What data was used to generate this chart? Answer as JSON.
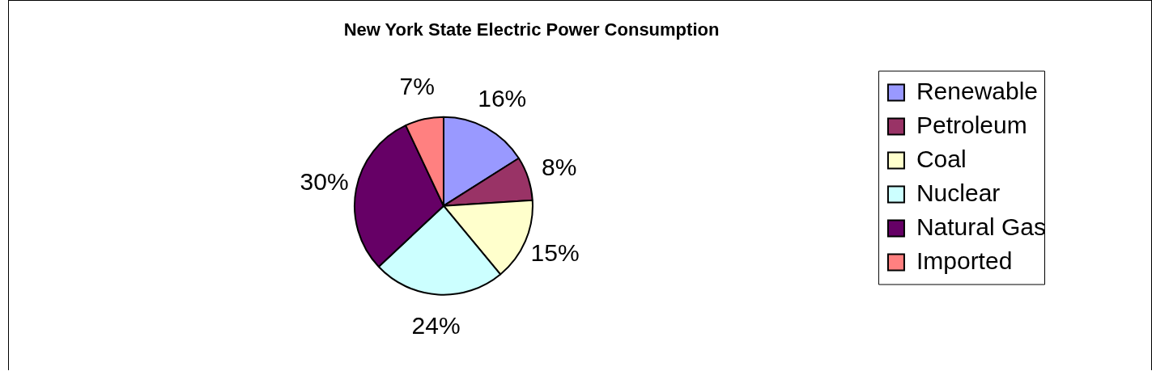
{
  "chart_data": {
    "type": "pie",
    "title": "New York State Electric Power Consumption",
    "categories": [
      "Renewable",
      "Petroleum",
      "Coal",
      "Nuclear",
      "Natural Gas",
      "Imported"
    ],
    "values": [
      16,
      8,
      15,
      24,
      30,
      7
    ],
    "colors": [
      "#9999ff",
      "#993366",
      "#ffffcc",
      "#ccffff",
      "#660066",
      "#ff8080"
    ],
    "value_labels": [
      "16%",
      "8%",
      "15%",
      "24%",
      "30%",
      "7%"
    ],
    "legend": "right"
  }
}
